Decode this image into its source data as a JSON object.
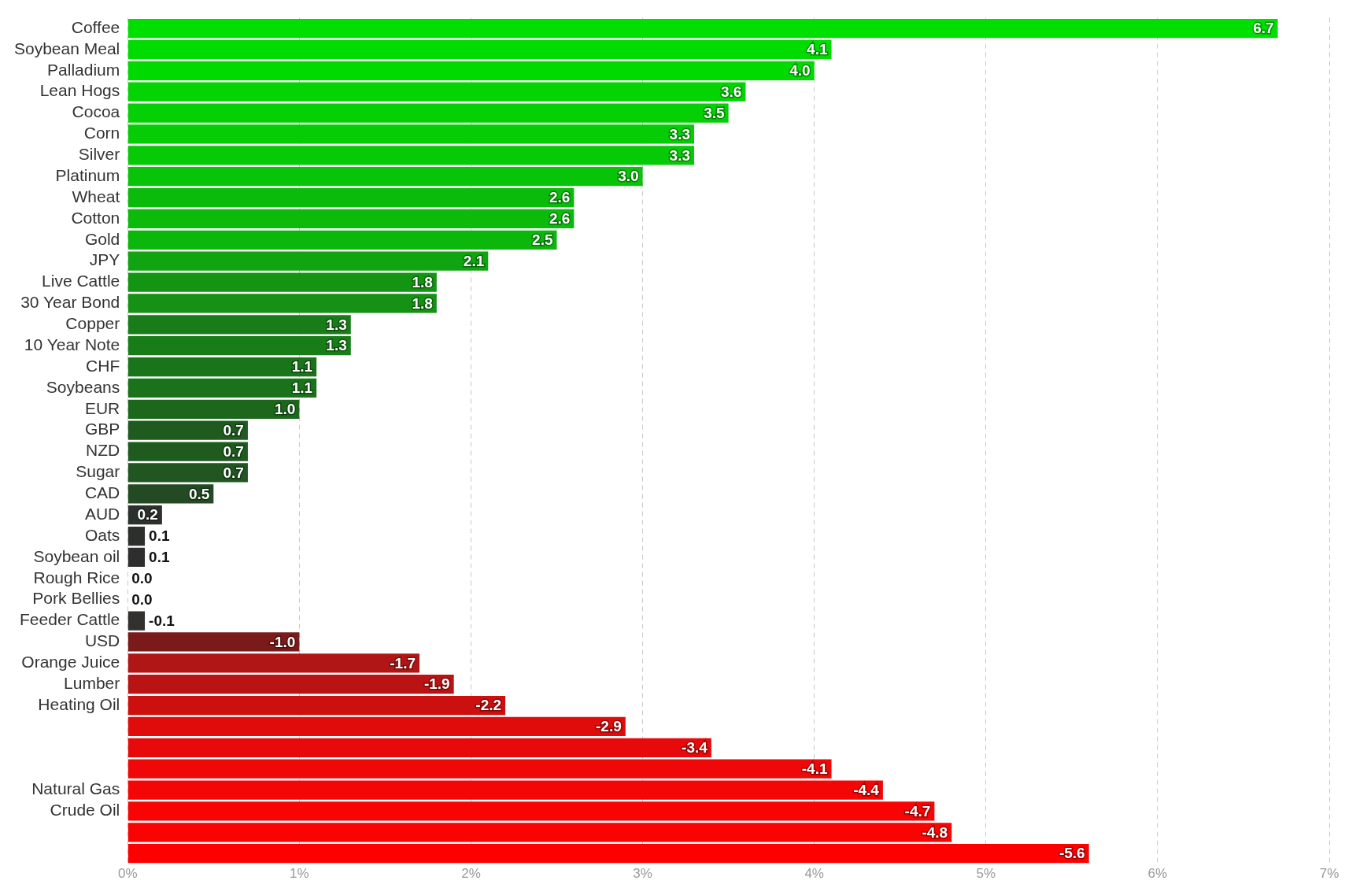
{
  "chart_data": {
    "type": "bar",
    "orientation": "horizontal",
    "categories": [
      "Coffee",
      "Soybean Meal",
      "Palladium",
      "Lean Hogs",
      "Cocoa",
      "Corn",
      "Silver",
      "Platinum",
      "Wheat",
      "Cotton",
      "Gold",
      "JPY",
      "Live Cattle",
      "30 Year Bond",
      "Copper",
      "10 Year Note",
      "CHF",
      "Soybeans",
      "EUR",
      "GBP",
      "NZD",
      "Sugar",
      "CAD",
      "AUD",
      "Oats",
      "Soybean oil",
      "Rough Rice",
      "Pork Bellies",
      "Feeder Cattle",
      "USD",
      "Orange Juice",
      "Lumber",
      "Heating Oil",
      null,
      null,
      null,
      "Natural Gas",
      "Crude Oil",
      null,
      null
    ],
    "values": [
      6.7,
      4.1,
      4.0,
      3.6,
      3.5,
      3.3,
      3.3,
      3.0,
      2.6,
      2.6,
      2.5,
      2.1,
      1.8,
      1.8,
      1.3,
      1.3,
      1.1,
      1.1,
      1.0,
      0.7,
      0.7,
      0.7,
      0.5,
      0.2,
      0.1,
      0.1,
      0.0,
      0.0,
      -0.1,
      -1.0,
      -1.7,
      -1.9,
      -2.2,
      -2.9,
      -3.4,
      -4.1,
      -4.4,
      -4.7,
      -4.8,
      -5.6
    ],
    "base": [
      0,
      0,
      0,
      0,
      0,
      0,
      0,
      0,
      0,
      0,
      0,
      0,
      0,
      0,
      0,
      0,
      0,
      0,
      0,
      0,
      0,
      0,
      0,
      0,
      0,
      0,
      null,
      null,
      0.1,
      1.0,
      1.7,
      1.9,
      2.2,
      2.9,
      3.4,
      4.1,
      4.4,
      4.7,
      4.8,
      5.6
    ],
    "value_labels": [
      "6.7",
      "4.1",
      "4.0",
      "3.6",
      "3.5",
      "3.3",
      "3.3",
      "3.0",
      "2.6",
      "2.6",
      "2.5",
      "2.1",
      "1.8",
      "1.8",
      "1.3",
      "1.3",
      "1.1",
      "1.1",
      "1.0",
      "0.7",
      "0.7",
      "0.7",
      "0.5",
      "0.2",
      "0.1",
      "0.1",
      "0.0",
      "0.0",
      "-0.1",
      "-1.0",
      "-1.7",
      "-1.9",
      "-2.2",
      "-2.9",
      "-3.4",
      "-4.1",
      "-4.4",
      "-4.7",
      "-4.8",
      "-5.6"
    ],
    "colors": [
      "#00e000",
      "#00dc00",
      "#00da00",
      "#04d404",
      "#05d005",
      "#06cc06",
      "#06ca06",
      "#08c408",
      "#0bbb0b",
      "#0bba0b",
      "#0cb70c",
      "#10a410",
      "#139513",
      "#159115",
      "#187d18",
      "#187d18",
      "#1a741a",
      "#1a731a",
      "#1d671d",
      "#1f5a1f",
      "#1f5a1f",
      "#215521",
      "#234a23",
      "#2b322b",
      "#2c2f2c",
      "#2e2e2e",
      "#333333",
      "#333333",
      "#333030",
      "#7a1a1a",
      "#b01616",
      "#b91313",
      "#cc1010",
      "#e00c0c",
      "#e80a0a",
      "#f00808",
      "#f50606",
      "#f80404",
      "#fa0303",
      "#ff0000"
    ],
    "xlim": [
      0,
      7
    ],
    "xticks": [
      {
        "value": 0,
        "label": "0%"
      },
      {
        "value": 1,
        "label": "1%"
      },
      {
        "value": 2,
        "label": "2%"
      },
      {
        "value": 3,
        "label": "3%"
      },
      {
        "value": 4,
        "label": "4%"
      },
      {
        "value": 5,
        "label": "5%"
      },
      {
        "value": 6,
        "label": "6%"
      },
      {
        "value": 7,
        "label": "7%"
      }
    ],
    "grid": "x",
    "legend": false
  }
}
